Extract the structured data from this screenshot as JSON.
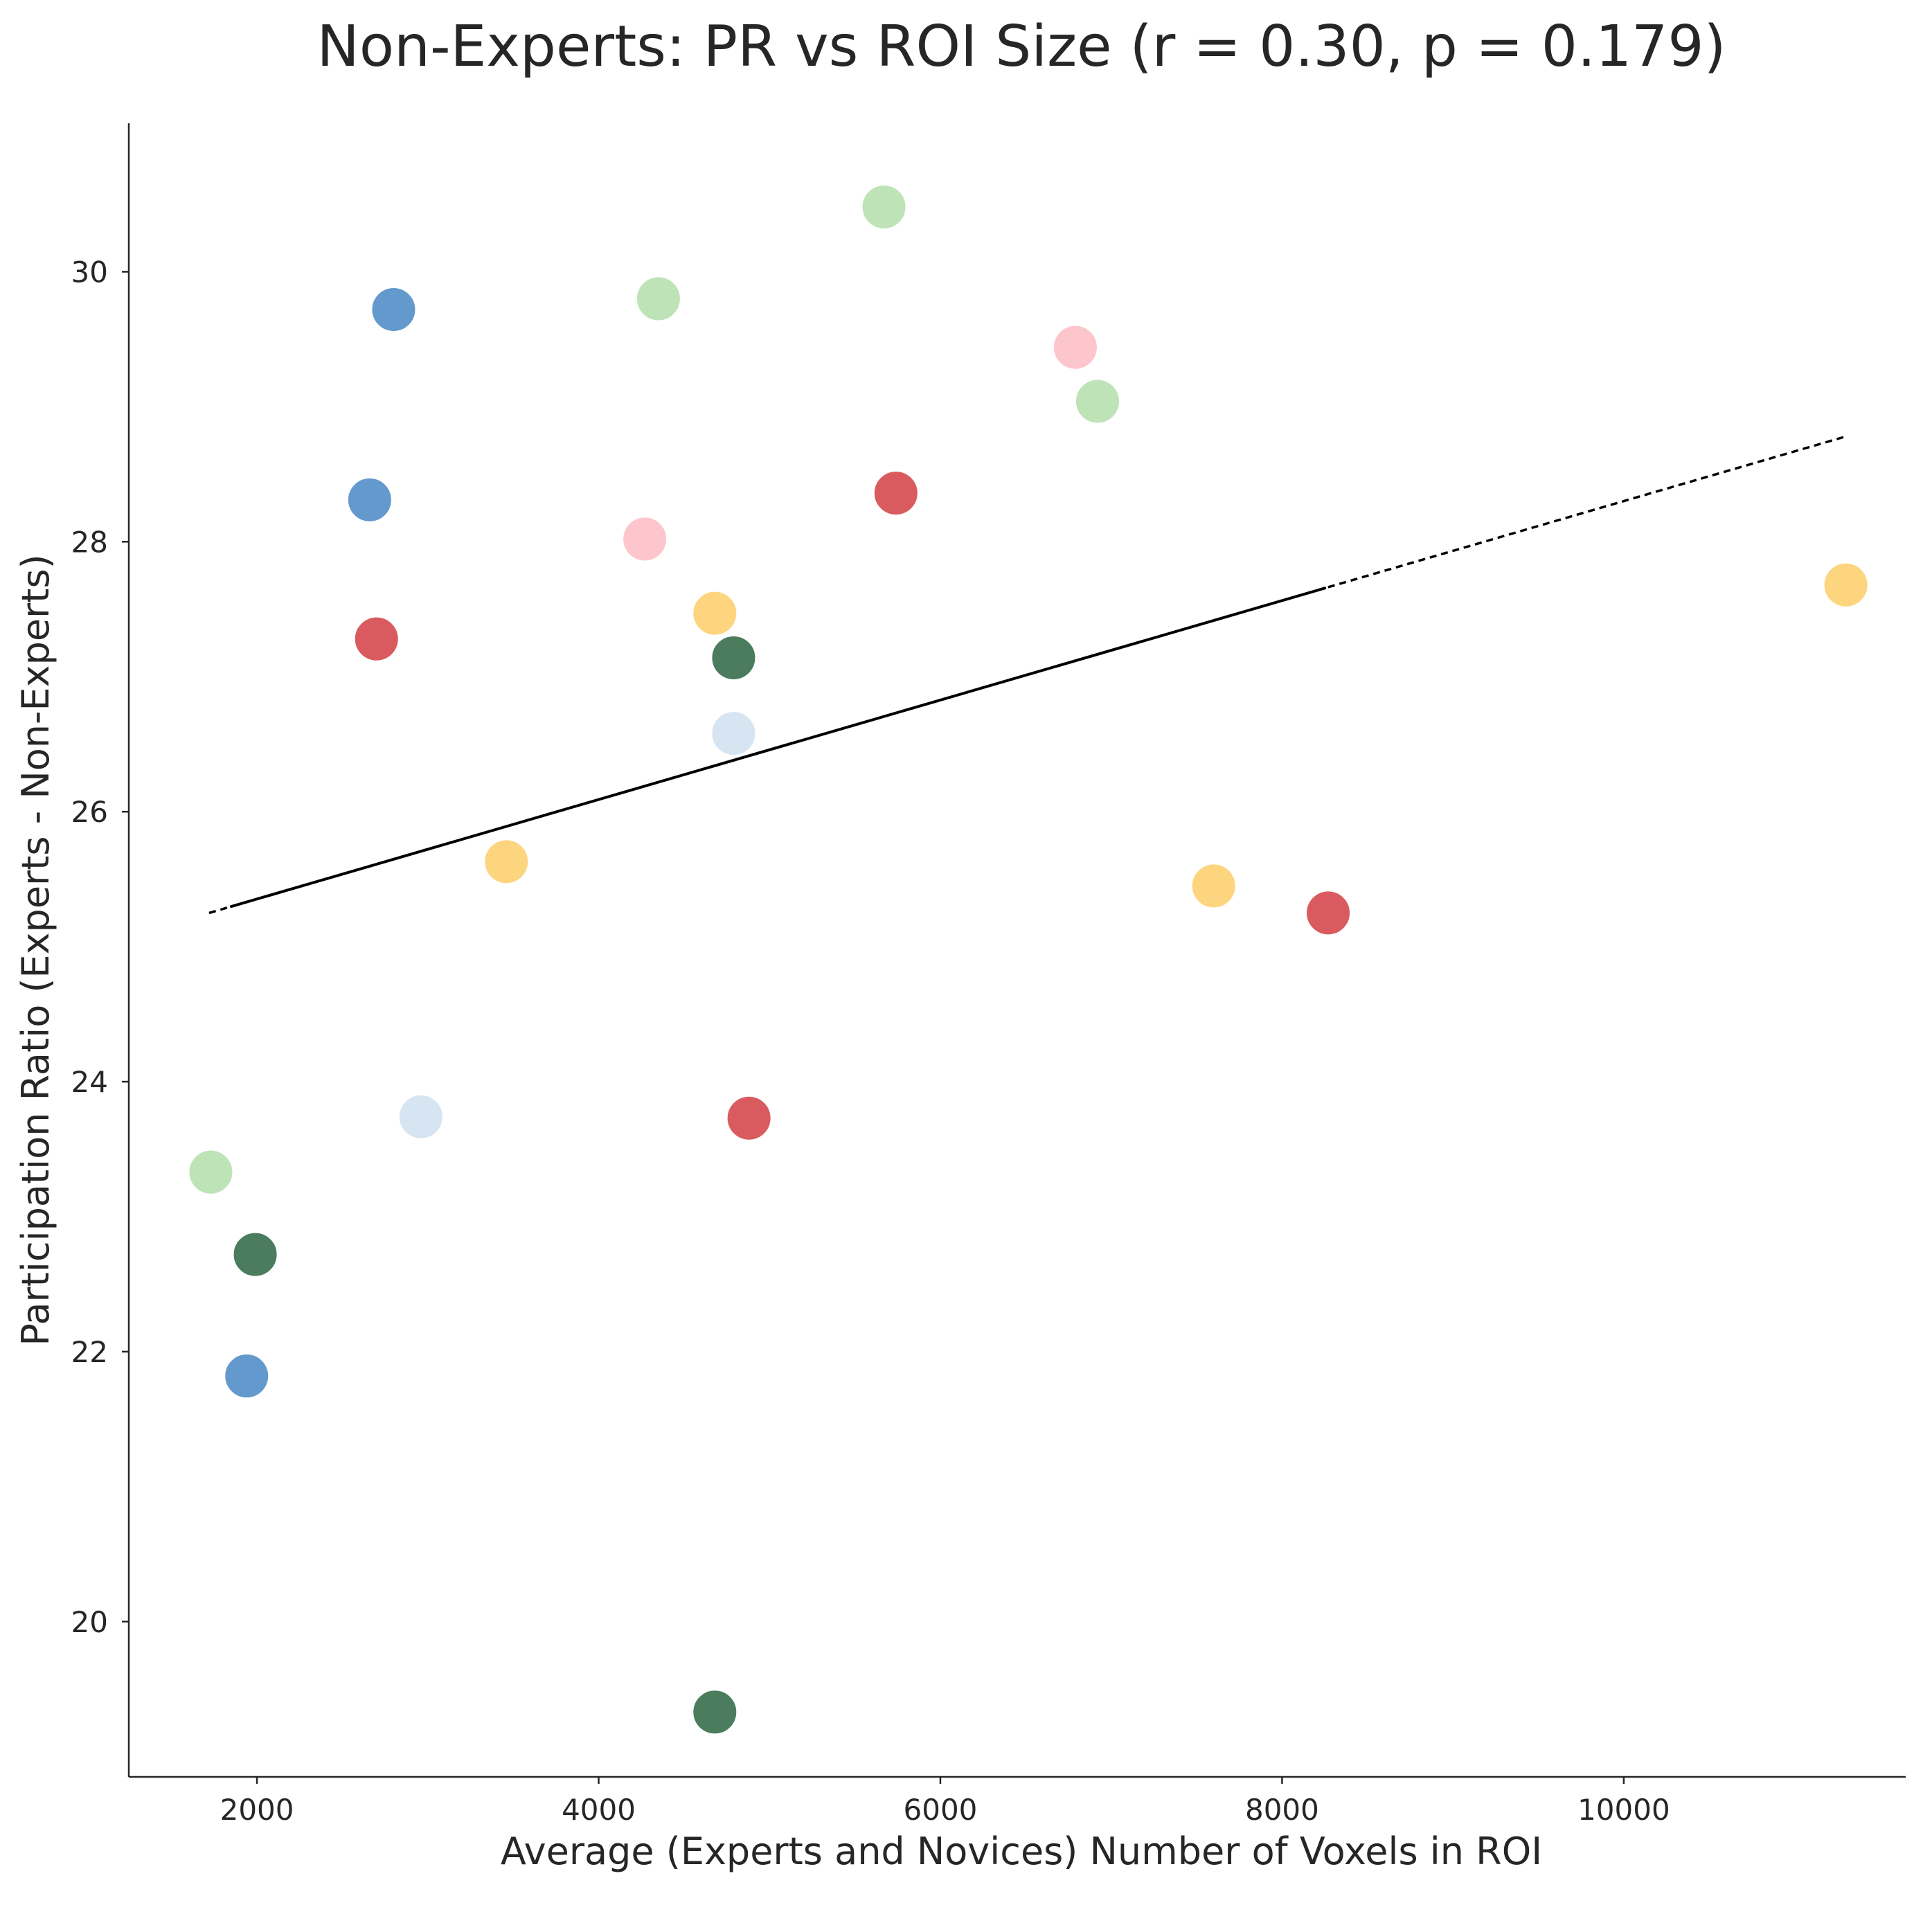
{
  "chart_data": {
    "type": "scatter",
    "title": "Non-Experts: PR vs ROI Size (r = 0.30, p = 0.179)",
    "xlabel": "Average (Experts and Novices) Number of Voxels in ROI",
    "ylabel": "Participation Ratio (Experts - Non-Experts)",
    "xlim": [
      1250,
      11650
    ],
    "ylim": [
      18.85,
      31.1
    ],
    "xticks": [
      2000,
      4000,
      6000,
      8000,
      10000
    ],
    "yticks": [
      20,
      22,
      24,
      26,
      28,
      30
    ],
    "grid": false,
    "trendline": {
      "x_start": 1720,
      "x_end": 11300,
      "y_start": 25.25,
      "y_end": 28.78,
      "solid_x_range": [
        1850,
        8250
      ]
    },
    "points": [
      {
        "x": 2800,
        "y": 29.72,
        "color": "#6399cc"
      },
      {
        "x": 2660,
        "y": 28.31,
        "color": "#6399cc"
      },
      {
        "x": 1940,
        "y": 21.82,
        "color": "#6399cc"
      },
      {
        "x": 4350,
        "y": 29.8,
        "color": "#bde3b7"
      },
      {
        "x": 5670,
        "y": 30.48,
        "color": "#bde3b7"
      },
      {
        "x": 6920,
        "y": 29.04,
        "color": "#bde3b7"
      },
      {
        "x": 1730,
        "y": 23.33,
        "color": "#bde3b7"
      },
      {
        "x": 6790,
        "y": 29.44,
        "color": "#fcc6cc"
      },
      {
        "x": 4270,
        "y": 28.02,
        "color": "#fcc6cc"
      },
      {
        "x": 5740,
        "y": 28.36,
        "color": "#da5b5f"
      },
      {
        "x": 2700,
        "y": 27.28,
        "color": "#da5b5f"
      },
      {
        "x": 4880,
        "y": 23.73,
        "color": "#da5b5f"
      },
      {
        "x": 8270,
        "y": 25.25,
        "color": "#da5b5f"
      },
      {
        "x": 4680,
        "y": 27.47,
        "color": "#fdd57f"
      },
      {
        "x": 3460,
        "y": 25.63,
        "color": "#fdd57f"
      },
      {
        "x": 7600,
        "y": 25.45,
        "color": "#fdd57f"
      },
      {
        "x": 11300,
        "y": 27.68,
        "color": "#fdd57f"
      },
      {
        "x": 4790,
        "y": 27.14,
        "color": "#4a7c5d"
      },
      {
        "x": 1990,
        "y": 22.72,
        "color": "#4a7c5d"
      },
      {
        "x": 4680,
        "y": 19.33,
        "color": "#4a7c5d"
      },
      {
        "x": 4790,
        "y": 26.58,
        "color": "#d6e5f1"
      },
      {
        "x": 2960,
        "y": 23.74,
        "color": "#d6e5f1"
      }
    ]
  }
}
